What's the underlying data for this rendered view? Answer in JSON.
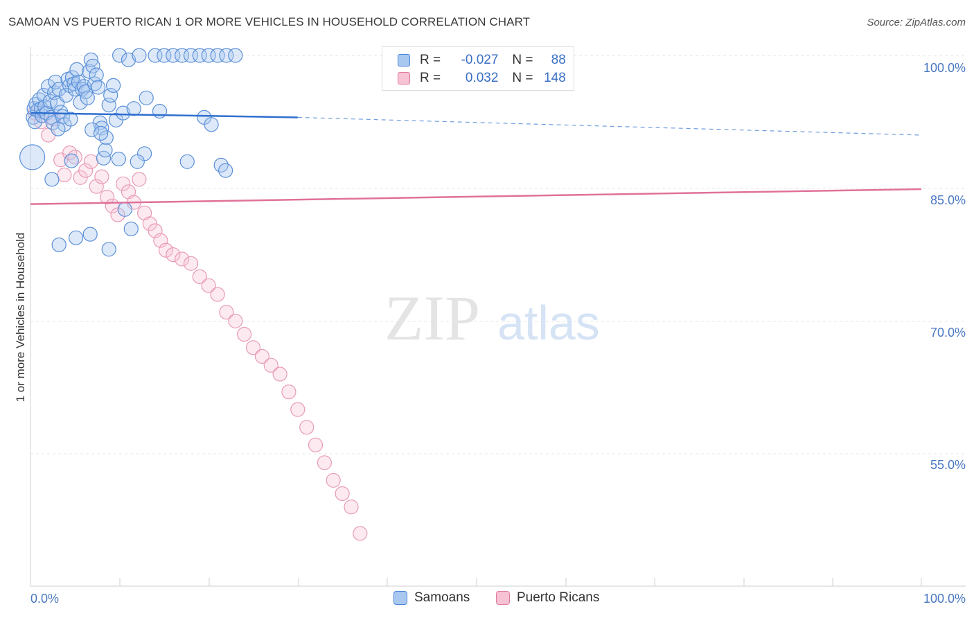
{
  "title": "SAMOAN VS PUERTO RICAN 1 OR MORE VEHICLES IN HOUSEHOLD CORRELATION CHART",
  "source": "Source: ZipAtlas.com",
  "watermark": {
    "zip": "ZIP",
    "atlas": "atlas"
  },
  "legend": {
    "samoans": {
      "r_label": "R =",
      "r_value": "-0.027",
      "n_label": "N =",
      "n_value": "88",
      "color": "#4a86d8",
      "fill": "#a9c8f0"
    },
    "puerto_ricans": {
      "r_label": "R =",
      "r_value": "0.032",
      "n_label": "N =",
      "n_value": "148",
      "color": "#e27aa0",
      "fill": "#f7c2d3"
    }
  },
  "bottom_legend": {
    "samoans": "Samoans",
    "puerto_ricans": "Puerto Ricans"
  },
  "chart_data": {
    "type": "scatter",
    "title": "SAMOAN VS PUERTO RICAN 1 OR MORE VEHICLES IN HOUSEHOLD CORRELATION CHART",
    "xlabel": "",
    "ylabel": "1 or more Vehicles in Household",
    "xlim": [
      0,
      100
    ],
    "ylim": [
      40,
      100
    ],
    "x_tick_labels": [
      "0.0%",
      "100.0%"
    ],
    "y_tick_labels": [
      "100.0%",
      "85.0%",
      "70.0%",
      "55.0%"
    ],
    "y_tick_values": [
      100,
      85,
      70,
      55
    ],
    "grid": true,
    "legend_position": "top-center",
    "series": [
      {
        "name": "Samoans",
        "color": "#4a86d8",
        "trend": {
          "x": [
            0,
            30,
            100
          ],
          "y": [
            93.5,
            93.0,
            91.0
          ],
          "solid_until_x": 30
        },
        "points": [
          [
            0.2,
            88.5,
            18
          ],
          [
            0.3,
            93,
            10
          ],
          [
            0.4,
            94,
            10
          ],
          [
            0.5,
            92.5,
            10
          ],
          [
            0.6,
            94.5,
            10
          ],
          [
            0.8,
            93.8,
            10
          ],
          [
            1.0,
            95,
            10
          ],
          [
            1.2,
            94,
            10
          ],
          [
            1.3,
            93.2,
            10
          ],
          [
            1.5,
            95.5,
            10
          ],
          [
            1.6,
            94.2,
            10
          ],
          [
            1.8,
            93.5,
            10
          ],
          [
            2.0,
            96.5,
            10
          ],
          [
            2.2,
            94.8,
            10
          ],
          [
            2.3,
            93,
            10
          ],
          [
            2.5,
            92.4,
            10
          ],
          [
            2.7,
            95.8,
            10
          ],
          [
            2.8,
            97,
            10
          ],
          [
            3.0,
            94.6,
            10
          ],
          [
            3.2,
            96.2,
            10
          ],
          [
            3.4,
            93.6,
            10
          ],
          [
            3.6,
            93.1,
            10
          ],
          [
            3.8,
            92.2,
            10
          ],
          [
            4.0,
            95.5,
            10
          ],
          [
            4.2,
            97.3,
            10
          ],
          [
            4.4,
            96.6,
            10
          ],
          [
            4.5,
            92.8,
            10
          ],
          [
            4.7,
            97.5,
            10
          ],
          [
            4.9,
            96.8,
            10
          ],
          [
            5.0,
            96.2,
            10
          ],
          [
            5.2,
            98.4,
            10
          ],
          [
            5.4,
            97,
            10
          ],
          [
            5.6,
            94.7,
            10
          ],
          [
            5.8,
            96.2,
            10
          ],
          [
            6.0,
            96.5,
            10
          ],
          [
            6.2,
            95.9,
            10
          ],
          [
            6.4,
            95.2,
            10
          ],
          [
            6.6,
            98.2,
            10
          ],
          [
            6.8,
            99.5,
            10
          ],
          [
            7.0,
            98.8,
            10
          ],
          [
            7.2,
            96.8,
            10
          ],
          [
            7.4,
            97.8,
            10
          ],
          [
            7.6,
            96.4,
            10
          ],
          [
            7.8,
            92.4,
            10
          ],
          [
            8.0,
            91.8,
            10
          ],
          [
            8.2,
            88.4,
            10
          ],
          [
            8.5,
            90.7,
            10
          ],
          [
            8.8,
            94.4,
            10
          ],
          [
            9.0,
            95.5,
            10
          ],
          [
            9.3,
            96.6,
            10
          ],
          [
            9.6,
            92.7,
            10
          ],
          [
            10.0,
            100,
            10
          ],
          [
            10.4,
            93.5,
            10
          ],
          [
            11.0,
            99.5,
            10
          ],
          [
            11.6,
            94,
            10
          ],
          [
            12.2,
            100,
            10
          ],
          [
            12.8,
            88.9,
            10
          ],
          [
            13.0,
            95.2,
            10
          ],
          [
            14,
            100,
            10
          ],
          [
            14.5,
            93.7,
            10
          ],
          [
            15.0,
            100,
            10
          ],
          [
            16.0,
            100,
            10
          ],
          [
            17,
            100,
            10
          ],
          [
            18,
            100,
            10
          ],
          [
            19,
            100,
            10
          ],
          [
            20,
            100,
            10
          ],
          [
            21,
            100,
            10
          ],
          [
            22,
            100,
            10
          ],
          [
            23,
            100,
            10
          ],
          [
            3.1,
            91.7,
            10
          ],
          [
            4.6,
            88.1,
            10
          ],
          [
            6.9,
            91.6,
            10
          ],
          [
            7.9,
            91.2,
            10
          ],
          [
            8.4,
            89.3,
            10
          ],
          [
            9.9,
            88.3,
            10
          ],
          [
            2.4,
            86.0,
            10
          ],
          [
            10.6,
            82.6,
            10
          ],
          [
            11.3,
            80.4,
            10
          ],
          [
            5.1,
            79.4,
            10
          ],
          [
            6.7,
            79.8,
            10
          ],
          [
            3.2,
            78.6,
            10
          ],
          [
            8.8,
            78.1,
            10
          ],
          [
            17.6,
            88.0,
            10
          ],
          [
            19.5,
            93.0,
            10
          ],
          [
            20.3,
            92.2,
            10
          ],
          [
            21.4,
            87.6,
            10
          ],
          [
            21.9,
            87.0,
            10
          ],
          [
            12.0,
            88.0,
            10
          ]
        ]
      },
      {
        "name": "Puerto Ricans",
        "color": "#e27aa0",
        "trend": {
          "x": [
            0,
            100
          ],
          "y": [
            83.2,
            84.9
          ]
        },
        "points": [
          [
            0.5,
            93.5,
            10
          ],
          [
            1.2,
            92.5,
            10
          ],
          [
            2.0,
            91.0,
            10
          ],
          [
            2.6,
            92.8,
            10
          ],
          [
            3.4,
            88.2,
            10
          ],
          [
            3.8,
            86.5,
            10
          ],
          [
            4.4,
            89.0,
            10
          ],
          [
            5.0,
            88.5,
            10
          ],
          [
            5.6,
            86.2,
            10
          ],
          [
            6.2,
            87.0,
            10
          ],
          [
            6.8,
            88.0,
            10
          ],
          [
            7.4,
            85.2,
            10
          ],
          [
            8.0,
            86.3,
            10
          ],
          [
            8.6,
            84.0,
            10
          ],
          [
            9.2,
            83.0,
            10
          ],
          [
            9.8,
            82.0,
            10
          ],
          [
            10.4,
            85.5,
            10
          ],
          [
            11.0,
            84.6,
            10
          ],
          [
            11.6,
            83.4,
            10
          ],
          [
            12.2,
            86.0,
            10
          ],
          [
            12.8,
            82.2,
            10
          ],
          [
            13.4,
            81.0,
            10
          ],
          [
            14.0,
            80.2,
            10
          ],
          [
            14.6,
            79.1,
            10
          ],
          [
            15.2,
            78.0,
            10
          ],
          [
            16.0,
            77.5,
            10
          ],
          [
            17.0,
            77.0,
            10
          ],
          [
            18.0,
            76.5,
            10
          ],
          [
            19.0,
            75.0,
            10
          ],
          [
            20.0,
            74.0,
            10
          ],
          [
            21.0,
            73.0,
            10
          ],
          [
            22.0,
            71.0,
            10
          ],
          [
            23.0,
            70.0,
            10
          ],
          [
            24.0,
            68.5,
            10
          ],
          [
            25.0,
            67.0,
            10
          ],
          [
            26.0,
            66.0,
            10
          ],
          [
            27.0,
            65.0,
            10
          ],
          [
            28.0,
            64.0,
            10
          ],
          [
            29.0,
            62.0,
            10
          ],
          [
            30.0,
            60.0,
            10
          ],
          [
            31.0,
            58.0,
            10
          ],
          [
            32.0,
            56.0,
            10
          ],
          [
            33.0,
            54.0,
            10
          ],
          [
            34.0,
            52.0,
            10
          ],
          [
            35.0,
            50.5,
            10
          ],
          [
            36.0,
            49.0,
            10
          ],
          [
            37.0,
            46.0,
            10
          ]
        ]
      }
    ]
  }
}
